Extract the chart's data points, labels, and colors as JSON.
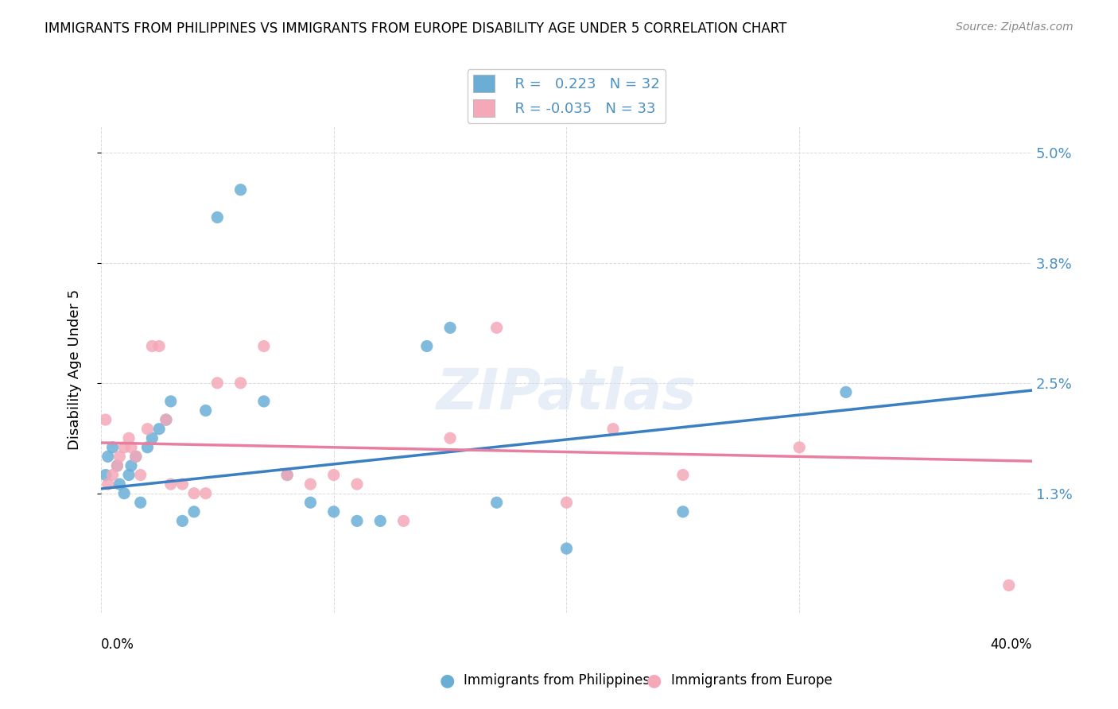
{
  "title": "IMMIGRANTS FROM PHILIPPINES VS IMMIGRANTS FROM EUROPE DISABILITY AGE UNDER 5 CORRELATION CHART",
  "source": "Source: ZipAtlas.com",
  "ylabel_label": "Disability Age Under 5",
  "legend_label1": "Immigrants from Philippines",
  "legend_label2": "Immigrants from Europe",
  "R1": 0.223,
  "N1": 32,
  "R2": -0.035,
  "N2": 33,
  "xlim": [
    0.0,
    40.0
  ],
  "ylim": [
    0.0,
    5.3
  ],
  "ytick_vals": [
    1.3,
    2.5,
    3.8,
    5.0
  ],
  "blue_color": "#6aaed6",
  "pink_color": "#f4a8b8",
  "blue_line_color": "#3a7fc1",
  "pink_line_color": "#e87fa0",
  "blue_line_start_y": 1.35,
  "blue_line_end_y": 2.42,
  "pink_line_start_y": 1.85,
  "pink_line_end_y": 1.65,
  "philippines_x": [
    0.2,
    0.3,
    0.5,
    0.7,
    0.8,
    1.0,
    1.2,
    1.3,
    1.5,
    1.7,
    2.0,
    2.2,
    2.5,
    2.8,
    3.0,
    3.5,
    4.0,
    4.5,
    5.0,
    6.0,
    7.0,
    8.0,
    9.0,
    10.0,
    11.0,
    12.0,
    14.0,
    15.0,
    17.0,
    20.0,
    25.0,
    32.0
  ],
  "philippines_y": [
    1.5,
    1.7,
    1.8,
    1.6,
    1.4,
    1.3,
    1.5,
    1.6,
    1.7,
    1.2,
    1.8,
    1.9,
    2.0,
    2.1,
    2.3,
    1.0,
    1.1,
    2.2,
    4.3,
    4.6,
    2.3,
    1.5,
    1.2,
    1.1,
    1.0,
    1.0,
    2.9,
    3.1,
    1.2,
    0.7,
    1.1,
    2.4
  ],
  "europe_x": [
    0.2,
    0.3,
    0.5,
    0.7,
    0.8,
    1.0,
    1.2,
    1.3,
    1.5,
    1.7,
    2.0,
    2.2,
    2.5,
    2.8,
    3.0,
    3.5,
    4.0,
    4.5,
    5.0,
    6.0,
    7.0,
    8.0,
    9.0,
    10.0,
    11.0,
    13.0,
    15.0,
    17.0,
    20.0,
    22.0,
    25.0,
    30.0,
    39.0
  ],
  "europe_y": [
    2.1,
    1.4,
    1.5,
    1.6,
    1.7,
    1.8,
    1.9,
    1.8,
    1.7,
    1.5,
    2.0,
    2.9,
    2.9,
    2.1,
    1.4,
    1.4,
    1.3,
    1.3,
    2.5,
    2.5,
    2.9,
    1.5,
    1.4,
    1.5,
    1.4,
    1.0,
    1.9,
    3.1,
    1.2,
    2.0,
    1.5,
    1.8,
    0.3
  ]
}
